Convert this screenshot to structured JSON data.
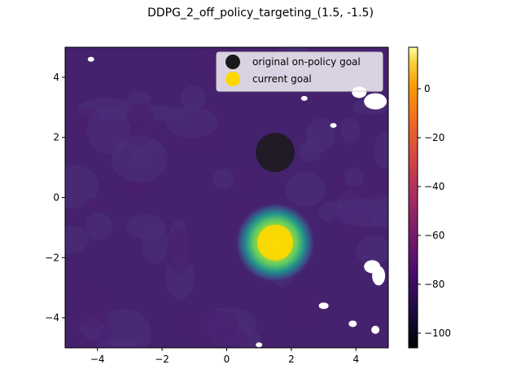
{
  "chart_data": {
    "type": "heatmap",
    "title": "DDPG_2_off_policy_targeting_(1.5, -1.5)",
    "xlabel": "",
    "ylabel": "",
    "xlim": [
      -5,
      5
    ],
    "ylim": [
      -5,
      5
    ],
    "x_ticks": [
      -4,
      -2,
      0,
      2,
      4
    ],
    "x_tick_labels": [
      "−4",
      "−2",
      "0",
      "2",
      "4"
    ],
    "y_ticks": [
      -4,
      -2,
      0,
      2,
      4
    ],
    "y_tick_labels": [
      "−4",
      "−2",
      "0",
      "2",
      "4"
    ],
    "colorbar": {
      "colormap": "inferno",
      "range": [
        -106,
        17
      ],
      "ticks": [
        0,
        -20,
        -40,
        -60,
        -80,
        -100
      ],
      "tick_labels": [
        "0",
        "−20",
        "−40",
        "−60",
        "−80",
        "−100"
      ]
    },
    "field_colors": {
      "background": "#45226e",
      "low": "#481f70",
      "mid_ring": "#3b528b",
      "ring_teal": "#21918c",
      "ring_green": "#5ec962",
      "peak": "#fde725"
    },
    "series": [
      {
        "name": "original on-policy goal",
        "type": "scatter",
        "x": [
          1.5
        ],
        "y": [
          1.5
        ],
        "color": "#1a1a1a"
      },
      {
        "name": "current goal",
        "type": "scatter",
        "x": [
          1.5
        ],
        "y": [
          -1.5
        ],
        "color": "#ffd700"
      }
    ],
    "legend": {
      "placement": "top-right",
      "entries": [
        "original on-policy goal",
        "current goal"
      ]
    },
    "grid": false
  }
}
